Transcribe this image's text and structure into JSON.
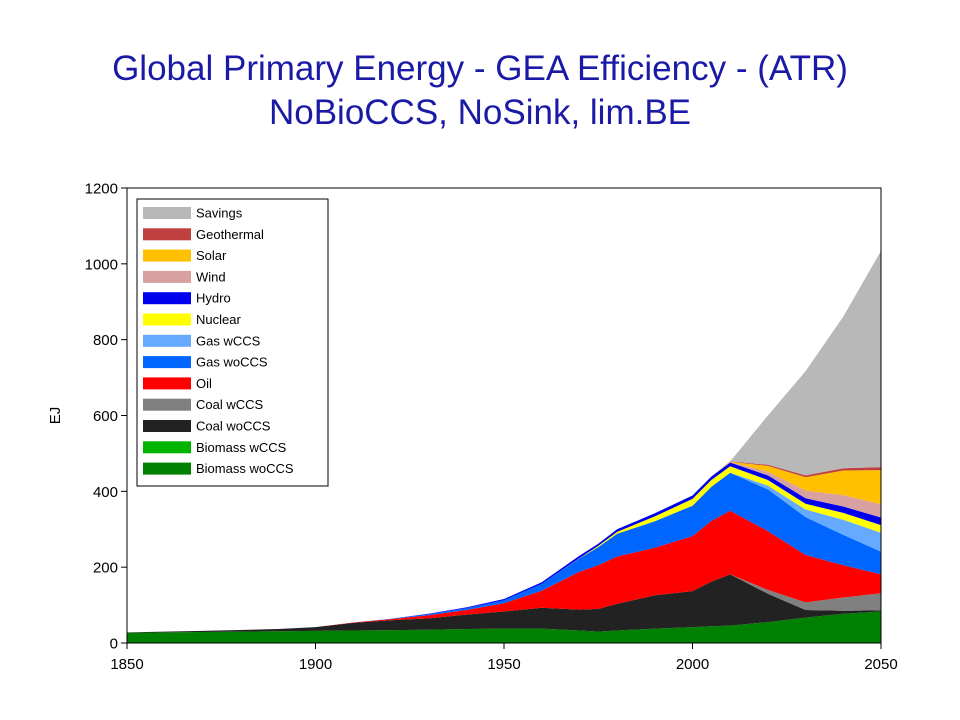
{
  "title_line1": "Global Primary Energy - GEA Efficiency - (ATR)",
  "title_line2": "NoBioCCS, NoSink, lim.BE",
  "chart_data": {
    "type": "area",
    "stacked": true,
    "ylabel": "EJ",
    "xlim": [
      1850,
      2050
    ],
    "ylim": [
      0,
      1200
    ],
    "xticks": [
      1850,
      1900,
      1950,
      2000,
      2050
    ],
    "yticks": [
      0,
      200,
      400,
      600,
      800,
      1000,
      1200
    ],
    "legend_position": "top-left",
    "x": [
      1850,
      1870,
      1890,
      1900,
      1910,
      1920,
      1930,
      1940,
      1950,
      1960,
      1970,
      1975,
      1980,
      1990,
      2000,
      2005,
      2010,
      2020,
      2030,
      2040,
      2050
    ],
    "series": [
      {
        "name": "Biomass woCCS",
        "color": "#008000",
        "values": [
          27,
          29,
          31,
          32,
          33,
          34,
          35,
          37,
          38,
          38,
          33,
          30,
          33,
          38,
          42,
          44,
          46,
          55,
          67,
          77,
          83
        ]
      },
      {
        "name": "Biomass wCCS",
        "color": "#00b400",
        "values": [
          0,
          0,
          0,
          0,
          0,
          0,
          0,
          0,
          0,
          0,
          0,
          0,
          0,
          0,
          0,
          0,
          0,
          0,
          0,
          0,
          0
        ]
      },
      {
        "name": "Coal woCCS",
        "color": "#222222",
        "values": [
          1,
          3,
          6,
          10,
          20,
          26,
          30,
          38,
          45,
          55,
          55,
          60,
          70,
          88,
          95,
          118,
          135,
          75,
          20,
          8,
          3
        ]
      },
      {
        "name": "Coal wCCS",
        "color": "#808080",
        "values": [
          0,
          0,
          0,
          0,
          0,
          0,
          0,
          0,
          0,
          0,
          0,
          0,
          0,
          0,
          0,
          0,
          0,
          10,
          20,
          35,
          45
        ]
      },
      {
        "name": "Oil",
        "color": "#ff0000",
        "values": [
          0,
          0,
          0,
          0,
          1,
          3,
          8,
          12,
          22,
          45,
          100,
          115,
          125,
          125,
          145,
          160,
          168,
          155,
          125,
          85,
          50
        ]
      },
      {
        "name": "Gas woCCS",
        "color": "#0066ff",
        "values": [
          0,
          0,
          0,
          0,
          0,
          1,
          3,
          5,
          8,
          18,
          35,
          48,
          60,
          70,
          80,
          90,
          100,
          110,
          100,
          80,
          60
        ]
      },
      {
        "name": "Gas wCCS",
        "color": "#66aaff",
        "values": [
          0,
          0,
          0,
          0,
          0,
          0,
          0,
          0,
          0,
          0,
          0,
          0,
          0,
          0,
          0,
          0,
          0,
          10,
          20,
          40,
          50
        ]
      },
      {
        "name": "Nuclear",
        "color": "#ffff00",
        "values": [
          0,
          0,
          0,
          0,
          0,
          0,
          0,
          0,
          0,
          0,
          1,
          3,
          5,
          13,
          18,
          18,
          17,
          15,
          15,
          18,
          20
        ]
      },
      {
        "name": "Hydro",
        "color": "#0000ee",
        "values": [
          0,
          0,
          0,
          0,
          0,
          0,
          1,
          2,
          3,
          4,
          6,
          6,
          7,
          8,
          9,
          9,
          10,
          12,
          15,
          17,
          20
        ]
      },
      {
        "name": "Wind",
        "color": "#d9a0a0",
        "values": [
          0,
          0,
          0,
          0,
          0,
          0,
          0,
          0,
          0,
          0,
          0,
          0,
          0,
          0,
          0,
          0,
          1,
          10,
          20,
          30,
          35
        ]
      },
      {
        "name": "Solar",
        "color": "#ffc000",
        "values": [
          0,
          0,
          0,
          0,
          0,
          0,
          0,
          0,
          0,
          0,
          0,
          0,
          0,
          0,
          0,
          0,
          1,
          15,
          35,
          65,
          90
        ]
      },
      {
        "name": "Geothermal",
        "color": "#c04040",
        "values": [
          0,
          0,
          0,
          0,
          0,
          0,
          0,
          0,
          0,
          0,
          0,
          0,
          0,
          0,
          0,
          0,
          1,
          3,
          5,
          6,
          8
        ]
      },
      {
        "name": "Savings",
        "color": "#b8b8b8",
        "values": [
          0,
          0,
          0,
          0,
          0,
          0,
          0,
          0,
          0,
          0,
          0,
          0,
          0,
          0,
          0,
          0,
          0,
          130,
          275,
          400,
          570
        ]
      }
    ]
  }
}
